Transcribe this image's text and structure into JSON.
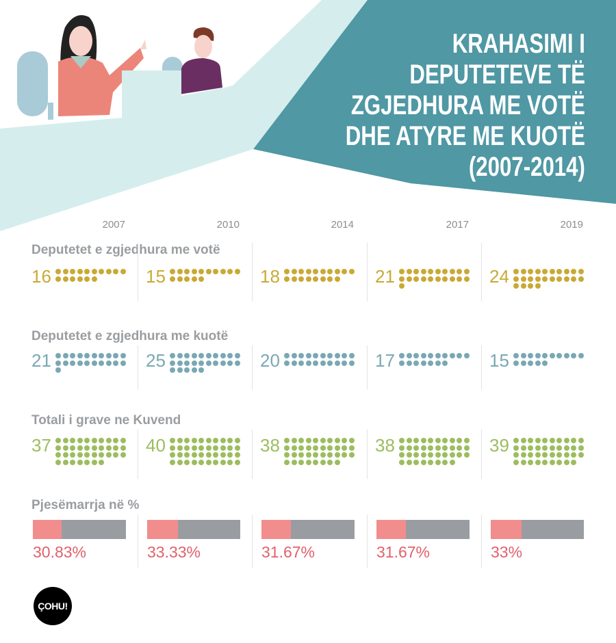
{
  "header": {
    "title_lines": [
      "KRAHASIMI I",
      "DEPUTETEVE TË",
      "ZGJEDHURA ME VOTË",
      "DHE ATYRE ME KUOTË",
      "(2007-2014)"
    ]
  },
  "colors": {
    "teal": "#4f98a4",
    "light_teal": "#d5eded",
    "vote": "#c9a936",
    "quota": "#79a8b3",
    "total": "#9cbd5f",
    "participation": "#f28d8d",
    "bar_rest": "#999da1",
    "percent_text": "#e0616b"
  },
  "chart_data": {
    "type": "pictogram",
    "categories": [
      "2007",
      "2010",
      "2014",
      "2017",
      "2019"
    ],
    "series": [
      {
        "name": "Deputetet e zgjedhura me votë",
        "values": [
          16,
          15,
          18,
          21,
          24
        ],
        "color": "#c9a936"
      },
      {
        "name": "Deputetet e zgjedhura me kuotë",
        "values": [
          21,
          25,
          20,
          17,
          15
        ],
        "color": "#79a8b3"
      },
      {
        "name": "Totali i grave ne Kuvend",
        "values": [
          37,
          40,
          38,
          38,
          39
        ],
        "color": "#9cbd5f"
      }
    ],
    "participation": {
      "name": "Pjesëmarrja në %",
      "values": [
        30.83,
        33.33,
        31.67,
        31.67,
        33
      ],
      "labels": [
        "30.83%",
        "33.33%",
        "31.67%",
        "31.67%",
        "33%"
      ]
    }
  },
  "logo": {
    "text": "ÇOHU!"
  }
}
